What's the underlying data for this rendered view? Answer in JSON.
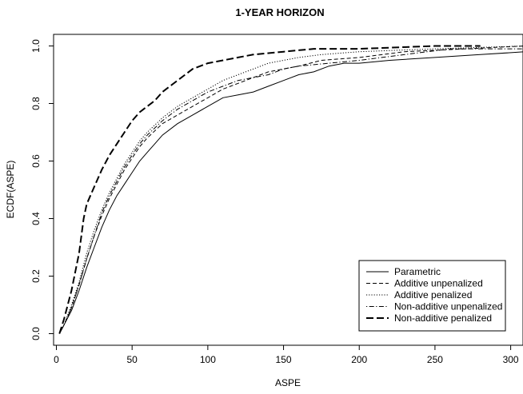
{
  "chart_data": {
    "type": "line",
    "title": "1-YEAR HORIZON",
    "xlabel": "ASPE",
    "ylabel": "ECDF(ASPE)",
    "xlim": [
      0,
      310
    ],
    "ylim": [
      0,
      1.0
    ],
    "x_ticks": [
      "0",
      "50",
      "100",
      "150",
      "200",
      "250",
      "300"
    ],
    "y_ticks": [
      "0.0",
      "0.2",
      "0.4",
      "0.6",
      "0.8",
      "1.0"
    ],
    "grid": false,
    "legend": "bottom-right",
    "series": [
      {
        "name": "Parametric",
        "line_style": "solid",
        "points": [
          [
            2,
            0
          ],
          [
            5,
            0.03
          ],
          [
            10,
            0.08
          ],
          [
            15,
            0.15
          ],
          [
            20,
            0.23
          ],
          [
            25,
            0.3
          ],
          [
            30,
            0.37
          ],
          [
            35,
            0.43
          ],
          [
            40,
            0.48
          ],
          [
            45,
            0.52
          ],
          [
            50,
            0.56
          ],
          [
            55,
            0.6
          ],
          [
            60,
            0.63
          ],
          [
            65,
            0.66
          ],
          [
            70,
            0.69
          ],
          [
            80,
            0.73
          ],
          [
            90,
            0.76
          ],
          [
            100,
            0.79
          ],
          [
            110,
            0.82
          ],
          [
            120,
            0.83
          ],
          [
            130,
            0.84
          ],
          [
            140,
            0.86
          ],
          [
            150,
            0.88
          ],
          [
            160,
            0.9
          ],
          [
            170,
            0.91
          ],
          [
            180,
            0.93
          ],
          [
            190,
            0.94
          ],
          [
            200,
            0.94
          ],
          [
            220,
            0.95
          ],
          [
            250,
            0.96
          ],
          [
            280,
            0.97
          ],
          [
            310,
            0.98
          ]
        ]
      },
      {
        "name": "Additive unpenalized",
        "line_style": "dashed",
        "points": [
          [
            2,
            0
          ],
          [
            5,
            0.03
          ],
          [
            10,
            0.09
          ],
          [
            15,
            0.17
          ],
          [
            20,
            0.26
          ],
          [
            25,
            0.34
          ],
          [
            30,
            0.41
          ],
          [
            35,
            0.47
          ],
          [
            40,
            0.52
          ],
          [
            45,
            0.57
          ],
          [
            50,
            0.61
          ],
          [
            55,
            0.65
          ],
          [
            60,
            0.68
          ],
          [
            70,
            0.73
          ],
          [
            80,
            0.76
          ],
          [
            90,
            0.79
          ],
          [
            100,
            0.82
          ],
          [
            110,
            0.85
          ],
          [
            120,
            0.87
          ],
          [
            130,
            0.89
          ],
          [
            140,
            0.91
          ],
          [
            150,
            0.92
          ],
          [
            160,
            0.93
          ],
          [
            175,
            0.95
          ],
          [
            200,
            0.96
          ],
          [
            230,
            0.98
          ],
          [
            270,
            0.99
          ],
          [
            310,
            1.0
          ]
        ]
      },
      {
        "name": "Additive penalized",
        "line_style": "dotted",
        "points": [
          [
            2,
            0
          ],
          [
            5,
            0.03
          ],
          [
            10,
            0.1
          ],
          [
            15,
            0.18
          ],
          [
            20,
            0.28
          ],
          [
            25,
            0.36
          ],
          [
            30,
            0.43
          ],
          [
            35,
            0.49
          ],
          [
            40,
            0.54
          ],
          [
            45,
            0.59
          ],
          [
            50,
            0.63
          ],
          [
            55,
            0.67
          ],
          [
            60,
            0.7
          ],
          [
            70,
            0.75
          ],
          [
            80,
            0.79
          ],
          [
            90,
            0.82
          ],
          [
            100,
            0.85
          ],
          [
            110,
            0.88
          ],
          [
            120,
            0.9
          ],
          [
            130,
            0.92
          ],
          [
            140,
            0.94
          ],
          [
            150,
            0.95
          ],
          [
            160,
            0.96
          ],
          [
            175,
            0.97
          ],
          [
            200,
            0.98
          ],
          [
            250,
            0.99
          ],
          [
            310,
            1.0
          ]
        ]
      },
      {
        "name": "Non-additive unpenalized",
        "line_style": "dotdash",
        "points": [
          [
            2,
            0
          ],
          [
            5,
            0.03
          ],
          [
            10,
            0.09
          ],
          [
            15,
            0.17
          ],
          [
            20,
            0.26
          ],
          [
            25,
            0.34
          ],
          [
            30,
            0.42
          ],
          [
            35,
            0.48
          ],
          [
            40,
            0.53
          ],
          [
            45,
            0.58
          ],
          [
            50,
            0.62
          ],
          [
            55,
            0.66
          ],
          [
            60,
            0.69
          ],
          [
            70,
            0.74
          ],
          [
            80,
            0.78
          ],
          [
            90,
            0.81
          ],
          [
            100,
            0.84
          ],
          [
            110,
            0.86
          ],
          [
            120,
            0.88
          ],
          [
            130,
            0.89
          ],
          [
            140,
            0.9
          ],
          [
            150,
            0.92
          ],
          [
            160,
            0.93
          ],
          [
            180,
            0.94
          ],
          [
            200,
            0.95
          ],
          [
            230,
            0.97
          ],
          [
            260,
            0.99
          ],
          [
            310,
            0.99
          ]
        ]
      },
      {
        "name": "Non-additive penalized",
        "line_style": "longdash",
        "points": [
          [
            2,
            0
          ],
          [
            5,
            0.05
          ],
          [
            10,
            0.15
          ],
          [
            15,
            0.28
          ],
          [
            18,
            0.4
          ],
          [
            20,
            0.45
          ],
          [
            25,
            0.51
          ],
          [
            30,
            0.57
          ],
          [
            35,
            0.62
          ],
          [
            40,
            0.66
          ],
          [
            45,
            0.7
          ],
          [
            50,
            0.74
          ],
          [
            55,
            0.77
          ],
          [
            60,
            0.79
          ],
          [
            65,
            0.81
          ],
          [
            70,
            0.84
          ],
          [
            75,
            0.86
          ],
          [
            80,
            0.88
          ],
          [
            90,
            0.92
          ],
          [
            100,
            0.94
          ],
          [
            110,
            0.95
          ],
          [
            120,
            0.96
          ],
          [
            130,
            0.97
          ],
          [
            150,
            0.98
          ],
          [
            170,
            0.99
          ],
          [
            200,
            0.99
          ],
          [
            250,
            1.0
          ],
          [
            280,
            1.0
          ]
        ]
      }
    ]
  }
}
